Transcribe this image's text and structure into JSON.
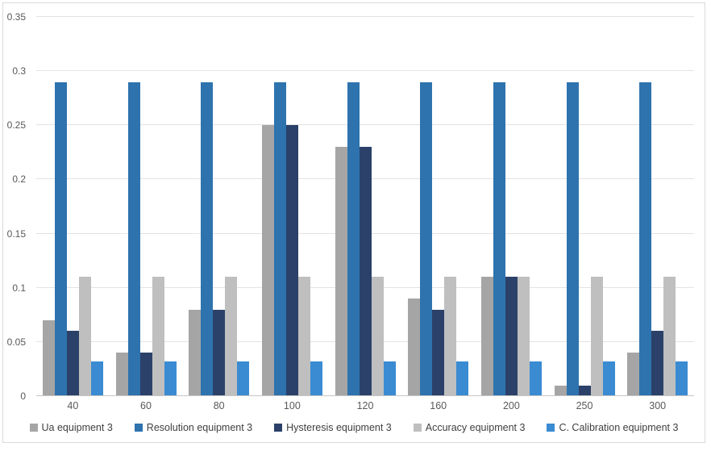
{
  "chart_data": {
    "type": "bar",
    "title": "",
    "xlabel": "",
    "ylabel": "",
    "categories": [
      "40",
      "60",
      "80",
      "100",
      "120",
      "160",
      "200",
      "250",
      "300"
    ],
    "series": [
      {
        "name": "Ua equipment 3",
        "color": "#a5a5a5",
        "values": [
          0.07,
          0.04,
          0.08,
          0.25,
          0.23,
          0.09,
          0.11,
          0.01,
          0.04
        ]
      },
      {
        "name": "Resolution equipment 3",
        "color": "#2e73ae",
        "values": [
          0.29,
          0.29,
          0.29,
          0.29,
          0.29,
          0.29,
          0.29,
          0.29,
          0.29
        ]
      },
      {
        "name": "Hysteresis equipment 3",
        "color": "#2b4169",
        "values": [
          0.06,
          0.04,
          0.08,
          0.25,
          0.23,
          0.08,
          0.11,
          0.01,
          0.06
        ]
      },
      {
        "name": "Accuracy equipment 3",
        "color": "#bfbfbf",
        "values": [
          0.11,
          0.11,
          0.11,
          0.11,
          0.11,
          0.11,
          0.11,
          0.11,
          0.11
        ]
      },
      {
        "name": "C. Calibration equipment 3",
        "color": "#3a8bd2",
        "values": [
          0.032,
          0.032,
          0.032,
          0.032,
          0.032,
          0.032,
          0.032,
          0.032,
          0.032
        ]
      }
    ],
    "ylim": [
      0,
      0.35
    ],
    "yticks": [
      {
        "label": "0",
        "value": 0
      },
      {
        "label": "0.05",
        "value": 0.05
      },
      {
        "label": "0.1",
        "value": 0.1
      },
      {
        "label": "0.15",
        "value": 0.15
      },
      {
        "label": "0.2",
        "value": 0.2
      },
      {
        "label": "0.25",
        "value": 0.25
      },
      {
        "label": "0.3",
        "value": 0.3
      },
      {
        "label": "0.35",
        "value": 0.35
      }
    ],
    "grid": true,
    "legend_position": "bottom",
    "style": {
      "background": "#ffffff",
      "frame_border": "#d9d9d9",
      "gridline": "#e3e3e3",
      "axis_line": "#c6c6c6",
      "tick_text": "#595959",
      "legend_text": "#404040"
    }
  }
}
